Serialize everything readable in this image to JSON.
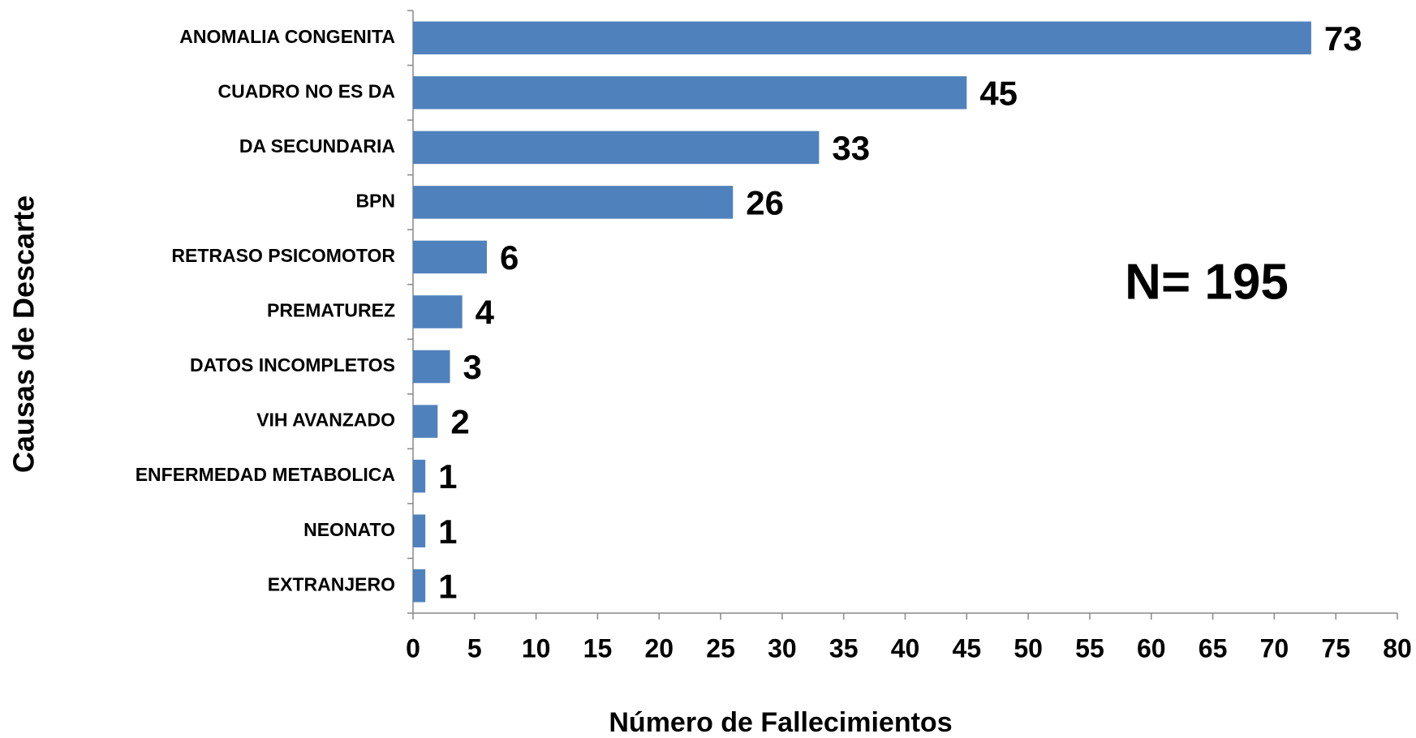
{
  "chart_data": {
    "type": "bar",
    "orientation": "horizontal",
    "categories": [
      "ANOMALIA CONGENITA",
      "CUADRO NO ES DA",
      "DA SECUNDARIA",
      "BPN",
      "RETRASO PSICOMOTOR",
      "PREMATUREZ",
      "DATOS INCOMPLETOS",
      "VIH AVANZADO",
      "ENFERMEDAD METABOLICA",
      "NEONATO",
      "EXTRANJERO"
    ],
    "values": [
      73,
      45,
      33,
      26,
      6,
      4,
      3,
      2,
      1,
      1,
      1
    ],
    "color": "#4f81bd",
    "xlim": [
      0,
      80
    ],
    "xticks": [
      0,
      5,
      10,
      15,
      20,
      25,
      30,
      35,
      40,
      45,
      50,
      55,
      60,
      65,
      70,
      75,
      80
    ],
    "x_label": "Número de Fallecimientos",
    "y_label": "Causas de Descarte",
    "annotation": "N= 195"
  }
}
